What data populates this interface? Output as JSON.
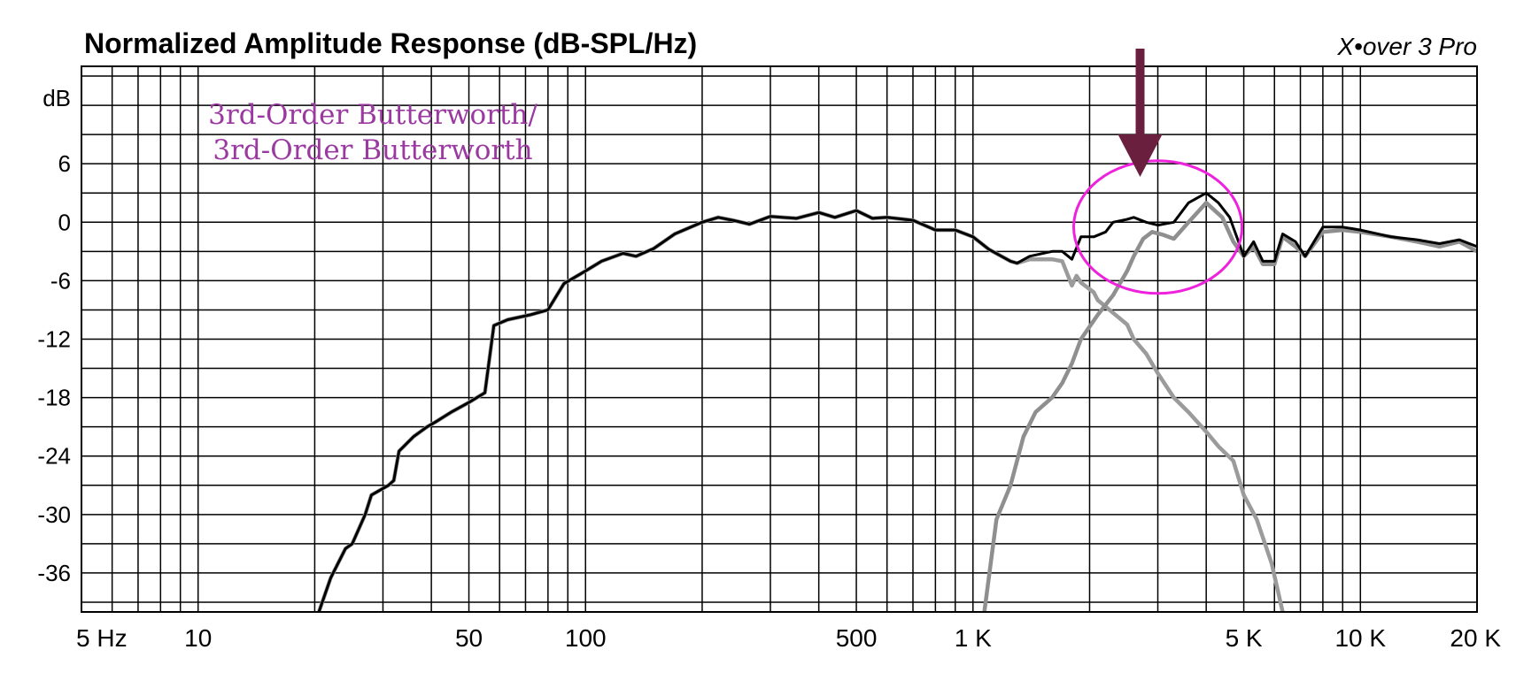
{
  "chart_data": {
    "type": "line",
    "title": "Normalized Amplitude Response (dB-SPL/Hz)",
    "brand": "X•over 3 Pro",
    "ylabel": "dB",
    "xscale": "log",
    "xlim": [
      5,
      20000
    ],
    "ylim": [
      -40,
      16
    ],
    "grid": true,
    "y_ticks": [
      {
        "value": 6,
        "label": "6"
      },
      {
        "value": 0,
        "label": "0"
      },
      {
        "value": -6,
        "label": "-6"
      },
      {
        "value": -12,
        "label": "-12"
      },
      {
        "value": -18,
        "label": "-18"
      },
      {
        "value": -24,
        "label": "-24"
      },
      {
        "value": -30,
        "label": "-30"
      },
      {
        "value": -36,
        "label": "-36"
      }
    ],
    "x_ticks": [
      {
        "value": 5,
        "label": "5 Hz"
      },
      {
        "value": 10,
        "label": "10"
      },
      {
        "value": 50,
        "label": "50"
      },
      {
        "value": 100,
        "label": "100"
      },
      {
        "value": 500,
        "label": "500"
      },
      {
        "value": 1000,
        "label": "1 K"
      },
      {
        "value": 5000,
        "label": "5 K"
      },
      {
        "value": 10000,
        "label": "10 K"
      },
      {
        "value": 20000,
        "label": "20 K"
      }
    ],
    "annotation": [
      "3rd-Order Butterworth/",
      "3rd-Order Butterworth"
    ],
    "highlight": {
      "center_hz": 3000,
      "center_db": -0.5,
      "shape": "ellipse",
      "color": "#ee22dd"
    },
    "arrow": {
      "hz": 2700,
      "color": "#6b1f3e"
    },
    "series": [
      {
        "color": "#9b9b9b",
        "points": [
          [
            20.5,
            -40
          ],
          [
            22,
            -36.5
          ],
          [
            24,
            -33.5
          ],
          [
            25,
            -33
          ],
          [
            27,
            -30
          ],
          [
            28,
            -28
          ],
          [
            31,
            -27
          ],
          [
            32,
            -26.5
          ],
          [
            33,
            -23.5
          ],
          [
            36,
            -22
          ],
          [
            39,
            -21
          ],
          [
            41,
            -20.5
          ],
          [
            45,
            -19.5
          ],
          [
            50,
            -18.5
          ],
          [
            55,
            -17.5
          ],
          [
            58,
            -10.6
          ],
          [
            63,
            -10
          ],
          [
            72,
            -9.5
          ],
          [
            80,
            -9
          ],
          [
            88,
            -6.3
          ],
          [
            100,
            -5
          ],
          [
            110,
            -4
          ],
          [
            125,
            -3.2
          ],
          [
            135,
            -3.5
          ],
          [
            150,
            -2.7
          ],
          [
            170,
            -1.2
          ],
          [
            200,
            0
          ],
          [
            220,
            0.5
          ],
          [
            240,
            0.2
          ],
          [
            265,
            -0.2
          ],
          [
            300,
            0.6
          ],
          [
            350,
            0.4
          ],
          [
            400,
            1
          ],
          [
            440,
            0.5
          ],
          [
            500,
            1.2
          ],
          [
            550,
            0.4
          ],
          [
            600,
            0.5
          ],
          [
            700,
            0.2
          ],
          [
            800,
            -0.8
          ],
          [
            900,
            -0.8
          ],
          [
            1000,
            -1.5
          ],
          [
            1100,
            -2.8
          ],
          [
            1250,
            -4
          ],
          [
            1300,
            -4.2
          ],
          [
            1400,
            -3.8
          ],
          [
            1600,
            -3.8
          ],
          [
            1700,
            -4
          ],
          [
            1800,
            -6.5
          ],
          [
            1850,
            -5.5
          ],
          [
            1900,
            -6.2
          ],
          [
            2050,
            -7.2
          ],
          [
            2100,
            -8
          ],
          [
            2300,
            -9.3
          ],
          [
            2500,
            -10.5
          ],
          [
            2600,
            -12
          ],
          [
            2800,
            -13.5
          ],
          [
            3000,
            -15.5
          ],
          [
            3300,
            -18
          ],
          [
            3600,
            -19.5
          ],
          [
            4000,
            -21.5
          ],
          [
            4300,
            -23
          ],
          [
            4700,
            -24.5
          ],
          [
            5000,
            -28
          ],
          [
            5400,
            -30.5
          ],
          [
            5900,
            -35
          ],
          [
            6300,
            -40
          ]
        ]
      },
      {
        "color": "#8f8f8f",
        "points": [
          [
            1070,
            -40
          ],
          [
            1150,
            -30.5
          ],
          [
            1250,
            -27
          ],
          [
            1350,
            -22
          ],
          [
            1450,
            -19.5
          ],
          [
            1600,
            -18
          ],
          [
            1700,
            -16.5
          ],
          [
            1800,
            -14.5
          ],
          [
            1900,
            -12
          ],
          [
            2100,
            -9.5
          ],
          [
            2300,
            -7.5
          ],
          [
            2500,
            -5
          ],
          [
            2600,
            -3.5
          ],
          [
            2750,
            -1.7
          ],
          [
            2900,
            -1
          ],
          [
            3100,
            -1.3
          ],
          [
            3300,
            -1.7
          ],
          [
            3600,
            0
          ],
          [
            4000,
            2
          ],
          [
            4400,
            0.5
          ],
          [
            4700,
            -2
          ],
          [
            5000,
            -3.5
          ],
          [
            5300,
            -2.5
          ],
          [
            5600,
            -4.3
          ],
          [
            6000,
            -4.3
          ],
          [
            6300,
            -1.5
          ],
          [
            6800,
            -2.5
          ],
          [
            7200,
            -3.5
          ],
          [
            8000,
            -1
          ],
          [
            9000,
            -0.8
          ],
          [
            10000,
            -1
          ],
          [
            12000,
            -1.5
          ],
          [
            14000,
            -2
          ],
          [
            16000,
            -2.5
          ],
          [
            18000,
            -2
          ],
          [
            20000,
            -3
          ]
        ]
      },
      {
        "color": "#000000",
        "points": [
          [
            20.5,
            -40
          ],
          [
            22,
            -36.5
          ],
          [
            24,
            -33.5
          ],
          [
            25,
            -33
          ],
          [
            27,
            -30
          ],
          [
            28,
            -28
          ],
          [
            31,
            -27
          ],
          [
            32,
            -26.5
          ],
          [
            33,
            -23.5
          ],
          [
            36,
            -22
          ],
          [
            39,
            -21
          ],
          [
            41,
            -20.5
          ],
          [
            45,
            -19.5
          ],
          [
            50,
            -18.5
          ],
          [
            55,
            -17.5
          ],
          [
            58,
            -10.6
          ],
          [
            63,
            -10
          ],
          [
            72,
            -9.5
          ],
          [
            80,
            -9
          ],
          [
            88,
            -6.3
          ],
          [
            100,
            -5
          ],
          [
            110,
            -4
          ],
          [
            125,
            -3.2
          ],
          [
            135,
            -3.5
          ],
          [
            150,
            -2.7
          ],
          [
            170,
            -1.2
          ],
          [
            200,
            0
          ],
          [
            220,
            0.5
          ],
          [
            240,
            0.2
          ],
          [
            265,
            -0.2
          ],
          [
            300,
            0.6
          ],
          [
            350,
            0.4
          ],
          [
            400,
            1
          ],
          [
            440,
            0.5
          ],
          [
            500,
            1.2
          ],
          [
            550,
            0.4
          ],
          [
            600,
            0.5
          ],
          [
            700,
            0.2
          ],
          [
            800,
            -0.8
          ],
          [
            900,
            -0.8
          ],
          [
            1000,
            -1.5
          ],
          [
            1100,
            -2.8
          ],
          [
            1250,
            -4
          ],
          [
            1300,
            -4.2
          ],
          [
            1400,
            -3.5
          ],
          [
            1600,
            -3
          ],
          [
            1700,
            -3
          ],
          [
            1800,
            -3.8
          ],
          [
            1900,
            -1.5
          ],
          [
            2050,
            -1.5
          ],
          [
            2200,
            -1
          ],
          [
            2300,
            0
          ],
          [
            2500,
            0.3
          ],
          [
            2600,
            0.5
          ],
          [
            2800,
            0
          ],
          [
            3000,
            -0.3
          ],
          [
            3300,
            0
          ],
          [
            3600,
            2
          ],
          [
            4000,
            3
          ],
          [
            4300,
            2
          ],
          [
            4600,
            0.5
          ],
          [
            5000,
            -3.5
          ],
          [
            5300,
            -2
          ],
          [
            5600,
            -4
          ],
          [
            6000,
            -4
          ],
          [
            6300,
            -1.2
          ],
          [
            6800,
            -2
          ],
          [
            7200,
            -3.5
          ],
          [
            8000,
            -0.5
          ],
          [
            9000,
            -0.5
          ],
          [
            10000,
            -0.8
          ],
          [
            12000,
            -1.5
          ],
          [
            14000,
            -1.8
          ],
          [
            16000,
            -2.2
          ],
          [
            18000,
            -1.8
          ],
          [
            20000,
            -2.5
          ]
        ]
      }
    ]
  }
}
